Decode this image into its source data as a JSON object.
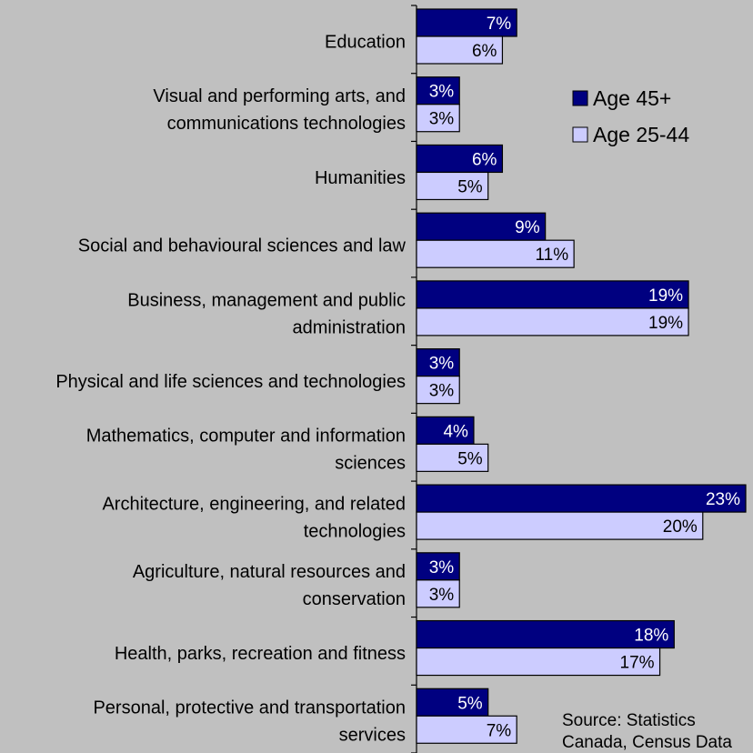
{
  "chart_data": {
    "type": "bar",
    "orientation": "horizontal",
    "categories": [
      [
        "Education"
      ],
      [
        "Visual and performing arts, and",
        "communications technologies"
      ],
      [
        "Humanities"
      ],
      [
        "Social and behavioural sciences and law"
      ],
      [
        "Business, management and public",
        "administration"
      ],
      [
        "Physical and life sciences and technologies"
      ],
      [
        "Mathematics, computer and information",
        "sciences"
      ],
      [
        "Architecture, engineering, and related",
        "technologies"
      ],
      [
        "Agriculture, natural resources and",
        "conservation"
      ],
      [
        "Health, parks, recreation and fitness"
      ],
      [
        "Personal, protective and transportation",
        "services"
      ]
    ],
    "series": [
      {
        "name": "Age 45+",
        "color": "#000080",
        "values": [
          7,
          3,
          6,
          9,
          19,
          3,
          4,
          23,
          3,
          18,
          5
        ],
        "labels": [
          "7%",
          "3%",
          "6%",
          "9%",
          "19%",
          "3%",
          "4%",
          "23%",
          "3%",
          "18%",
          "5%"
        ]
      },
      {
        "name": "Age 25-44",
        "color": "#ccccff",
        "values": [
          6,
          3,
          5,
          11,
          19,
          3,
          5,
          20,
          3,
          17,
          7
        ],
        "labels": [
          "6%",
          "3%",
          "5%",
          "11%",
          "19%",
          "3%",
          "5%",
          "20%",
          "3%",
          "17%",
          "7%"
        ]
      }
    ],
    "xlim": [
      0,
      23
    ],
    "legend": {
      "position": "top-right"
    },
    "grid": false,
    "annotation": [
      "Source: Statistics",
      "Canada, Census Data"
    ]
  }
}
